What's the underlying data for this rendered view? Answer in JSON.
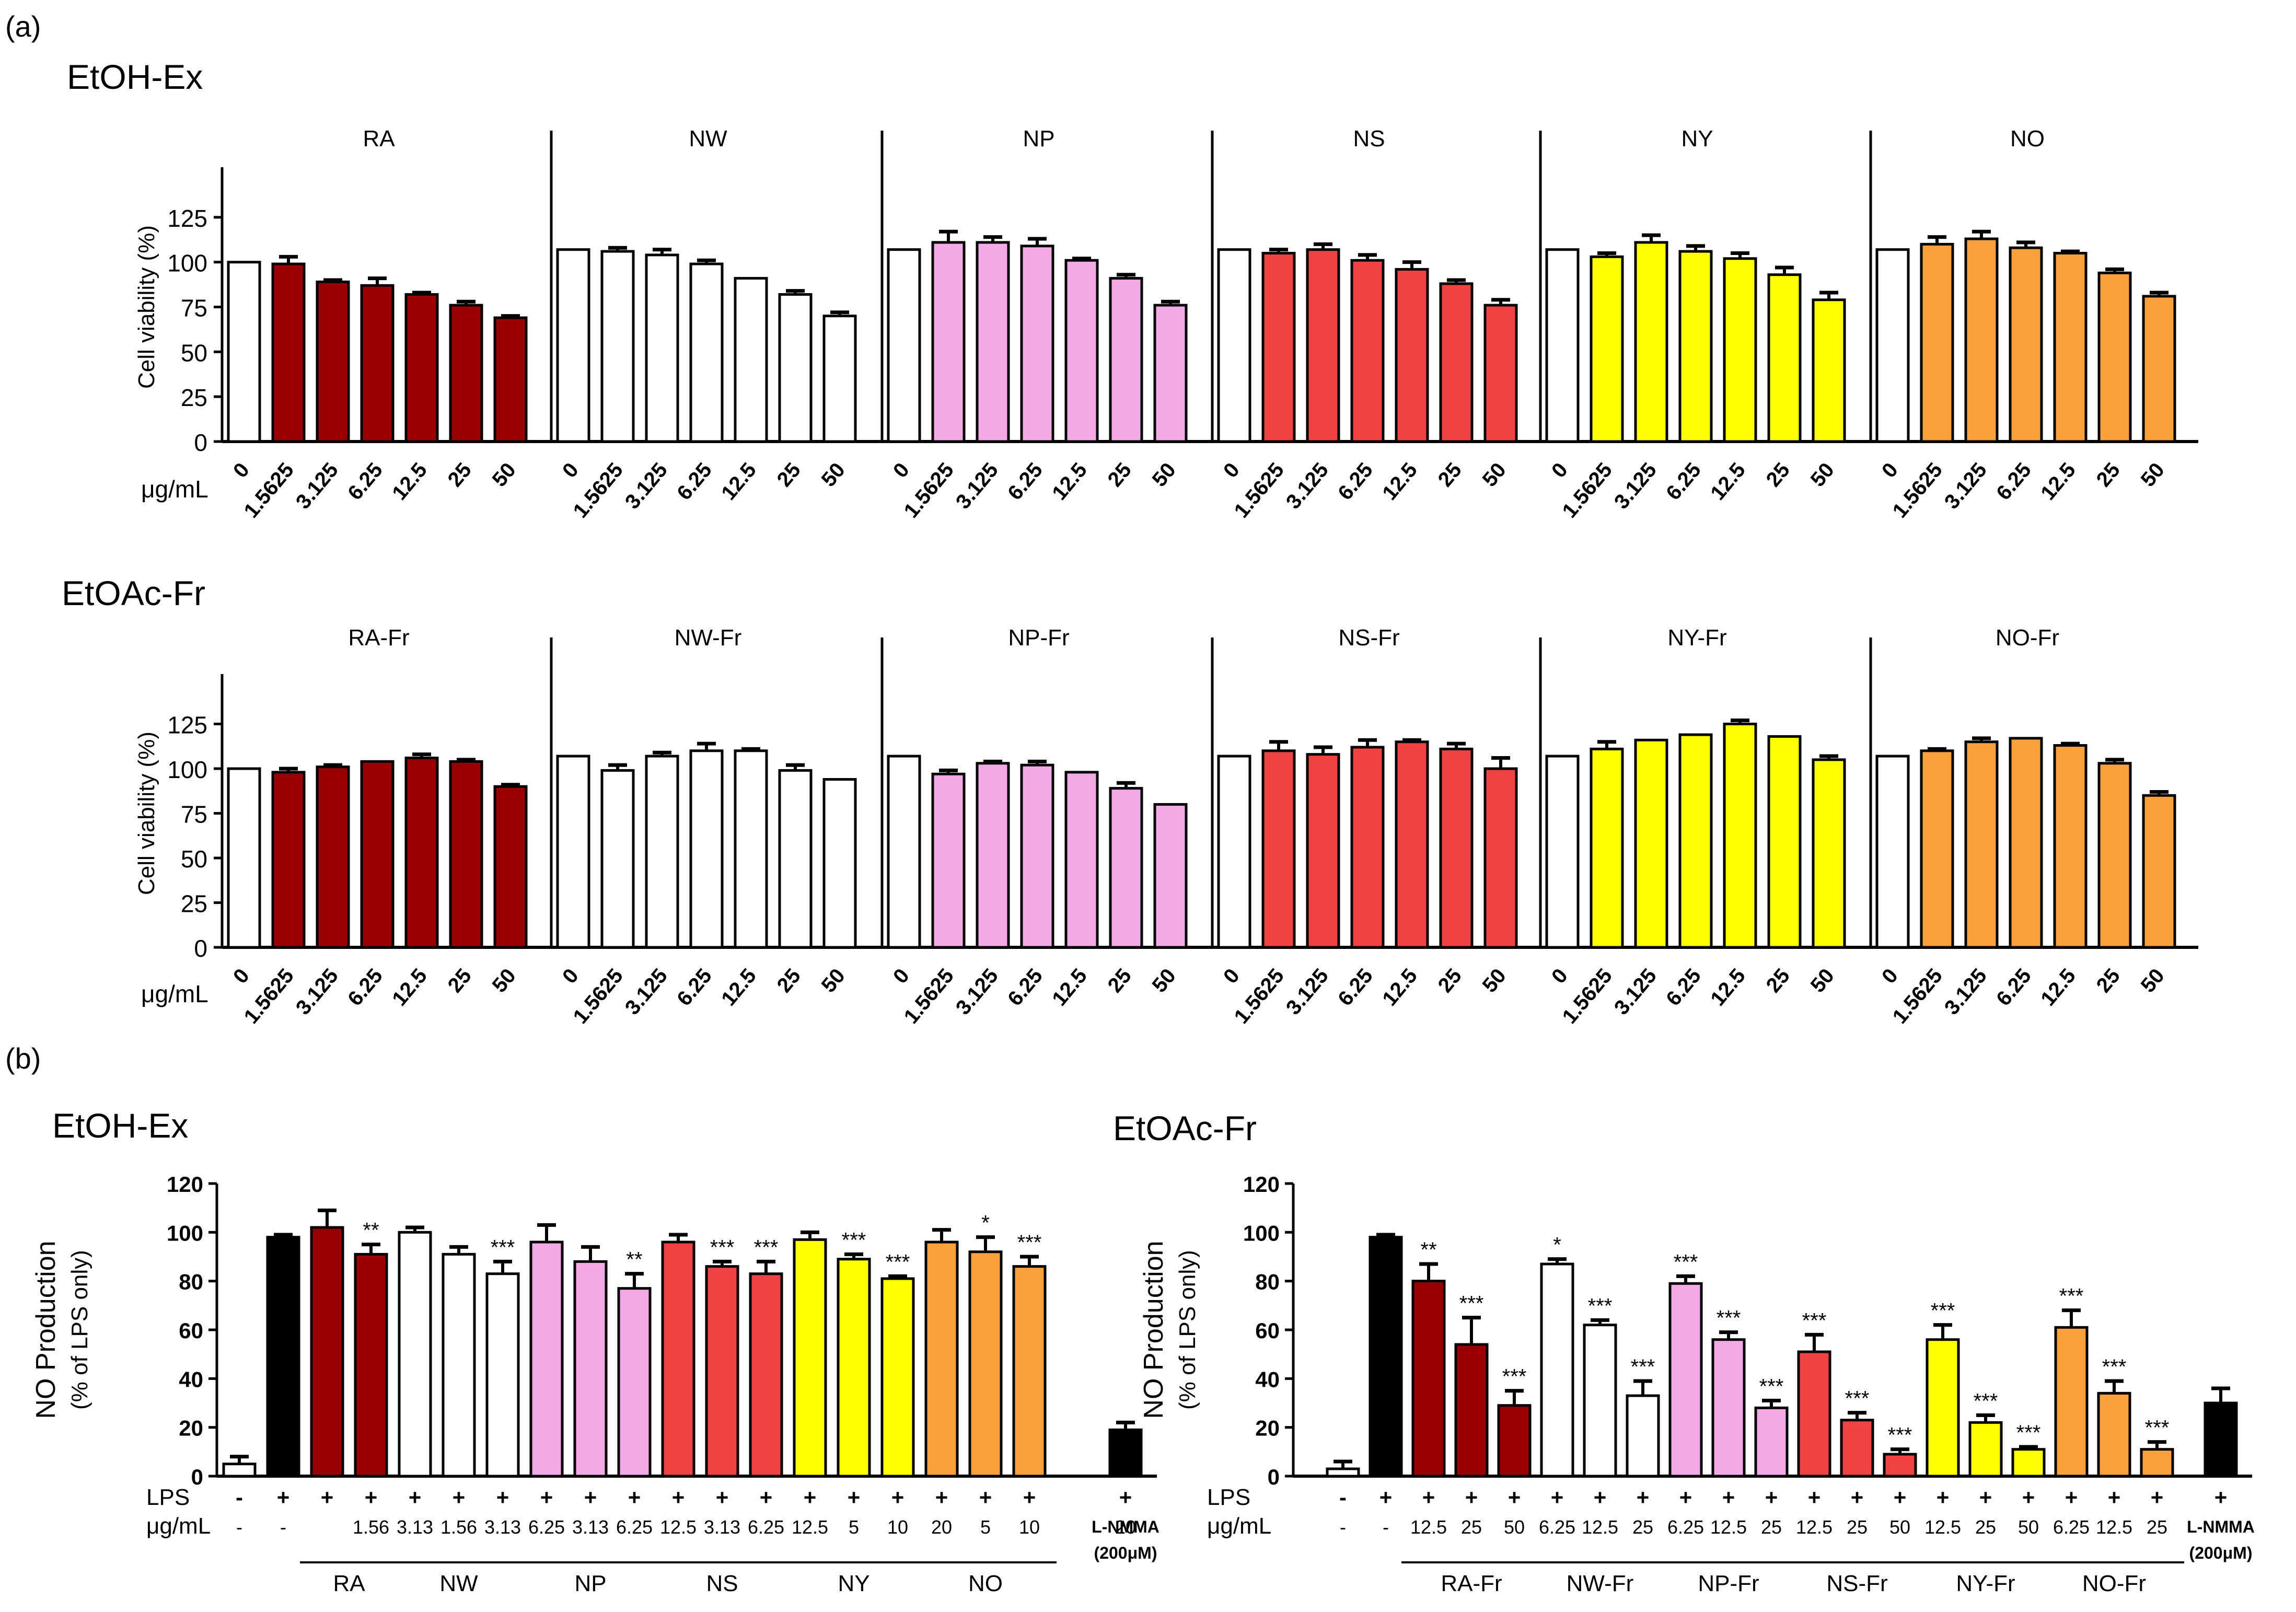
{
  "figure": {
    "panel_a_label": "(a)",
    "panel_b_label": "(b)",
    "row1_title": "EtOH-Ex",
    "row2_title": "EtOAc-Fr",
    "b_left_title": "EtOH-Ex",
    "b_right_title": "EtOAc-Fr"
  },
  "colors": {
    "RA": "#990000",
    "NW": "#ffffff",
    "NP": "#f2a9e6",
    "NS": "#f04242",
    "NY": "#ffff00",
    "NO": "#f9a03c",
    "control": "#ffffff",
    "lps": "#000000"
  },
  "chart_data": [
    {
      "id": "viability_etoh",
      "type": "bar",
      "ylabel": "Cell viability (%)",
      "xunit": "μg/mL",
      "ylim": [
        0,
        150
      ],
      "yticks": [
        "0",
        "25",
        "50",
        "75",
        "100",
        "125"
      ],
      "groups": [
        {
          "name": "RA",
          "color_key": "RA",
          "categories": [
            "0",
            "1.5625",
            "3.125",
            "6.25",
            "12.5",
            "25",
            "50"
          ],
          "values": [
            100,
            99,
            89,
            87,
            82,
            76,
            69
          ],
          "errors": [
            0,
            4,
            1,
            4,
            1,
            2,
            1
          ]
        },
        {
          "name": "NW",
          "color_key": "NW",
          "categories": [
            "0",
            "1.5625",
            "3.125",
            "6.25",
            "12.5",
            "25",
            "50"
          ],
          "values": [
            107,
            106,
            104,
            99,
            91,
            82,
            70
          ],
          "errors": [
            0,
            2,
            3,
            2,
            0,
            2,
            2
          ]
        },
        {
          "name": "NP",
          "color_key": "NP",
          "categories": [
            "0",
            "1.5625",
            "3.125",
            "6.25",
            "12.5",
            "25",
            "50"
          ],
          "values": [
            107,
            111,
            111,
            109,
            101,
            91,
            76
          ],
          "errors": [
            0,
            6,
            3,
            4,
            1,
            2,
            2
          ]
        },
        {
          "name": "NS",
          "color_key": "NS",
          "categories": [
            "0",
            "1.5625",
            "3.125",
            "6.25",
            "12.5",
            "25",
            "50"
          ],
          "values": [
            107,
            105,
            107,
            101,
            96,
            88,
            76
          ],
          "errors": [
            0,
            2,
            3,
            3,
            4,
            2,
            3
          ]
        },
        {
          "name": "NY",
          "color_key": "NY",
          "categories": [
            "0",
            "1.5625",
            "3.125",
            "6.25",
            "12.5",
            "25",
            "50"
          ],
          "values": [
            107,
            103,
            111,
            106,
            102,
            93,
            79
          ],
          "errors": [
            0,
            2,
            4,
            3,
            3,
            4,
            4
          ]
        },
        {
          "name": "NO",
          "color_key": "NO",
          "categories": [
            "0",
            "1.5625",
            "3.125",
            "6.25",
            "12.5",
            "25",
            "50"
          ],
          "values": [
            107,
            110,
            113,
            108,
            105,
            94,
            81
          ],
          "errors": [
            0,
            4,
            4,
            3,
            1,
            2,
            2
          ]
        }
      ]
    },
    {
      "id": "viability_etoac",
      "type": "bar",
      "ylabel": "Cell viability (%)",
      "xunit": "μg/mL",
      "ylim": [
        0,
        150
      ],
      "yticks": [
        "0",
        "25",
        "50",
        "75",
        "100",
        "125"
      ],
      "groups": [
        {
          "name": "RA-Fr",
          "color_key": "RA",
          "categories": [
            "0",
            "1.5625",
            "3.125",
            "6.25",
            "12.5",
            "25",
            "50"
          ],
          "values": [
            100,
            98,
            101,
            104,
            106,
            104,
            90
          ],
          "errors": [
            0,
            2,
            1,
            0,
            2,
            1,
            1
          ]
        },
        {
          "name": "NW-Fr",
          "color_key": "NW",
          "categories": [
            "0",
            "1.5625",
            "3.125",
            "6.25",
            "12.5",
            "25",
            "50"
          ],
          "values": [
            107,
            99,
            107,
            110,
            110,
            99,
            94
          ],
          "errors": [
            0,
            3,
            2,
            4,
            1,
            3,
            0
          ]
        },
        {
          "name": "NP-Fr",
          "color_key": "NP",
          "categories": [
            "0",
            "1.5625",
            "3.125",
            "6.25",
            "12.5",
            "25",
            "50"
          ],
          "values": [
            107,
            97,
            103,
            102,
            98,
            89,
            80
          ],
          "errors": [
            0,
            2,
            1,
            2,
            0,
            3,
            0
          ]
        },
        {
          "name": "NS-Fr",
          "color_key": "NS",
          "categories": [
            "0",
            "1.5625",
            "3.125",
            "6.25",
            "12.5",
            "25",
            "50"
          ],
          "values": [
            107,
            110,
            108,
            112,
            115,
            111,
            100
          ],
          "errors": [
            0,
            5,
            4,
            4,
            1,
            3,
            6
          ]
        },
        {
          "name": "NY-Fr",
          "color_key": "NY",
          "categories": [
            "0",
            "1.5625",
            "3.125",
            "6.25",
            "12.5",
            "25",
            "50"
          ],
          "values": [
            107,
            111,
            116,
            119,
            125,
            118,
            105
          ],
          "errors": [
            0,
            4,
            0,
            0,
            2,
            0,
            2
          ]
        },
        {
          "name": "NO-Fr",
          "color_key": "NO",
          "categories": [
            "0",
            "1.5625",
            "3.125",
            "6.25",
            "12.5",
            "25",
            "50"
          ],
          "values": [
            107,
            110,
            115,
            117,
            113,
            103,
            85
          ],
          "errors": [
            0,
            1,
            2,
            0,
            1,
            2,
            2
          ]
        }
      ]
    },
    {
      "id": "no_production_etoh",
      "type": "bar",
      "ylabel": "NO Production",
      "ylabel2": "(% of LPS only)",
      "ylim": [
        0,
        120
      ],
      "yticks": [
        "0",
        "20",
        "40",
        "60",
        "80",
        "100",
        "120"
      ],
      "row_labels": [
        "LPS",
        "μg/mL"
      ],
      "bars": [
        {
          "lps": "-",
          "dose": "-",
          "value": 5,
          "error": 3,
          "sig": "",
          "color_key": "control"
        },
        {
          "lps": "+",
          "dose": "-",
          "value": 98,
          "error": 1,
          "sig": "",
          "color_key": "lps"
        },
        {
          "lps": "+",
          "dose": "",
          "value": 102,
          "error": 7,
          "sig": "",
          "color_key": "RA"
        },
        {
          "lps": "+",
          "dose": "1.56",
          "value": 91,
          "error": 4,
          "sig": "**",
          "color_key": "RA"
        },
        {
          "lps": "+",
          "dose": "3.13",
          "value": 100,
          "error": 2,
          "sig": "",
          "color_key": "NW"
        },
        {
          "lps": "+",
          "dose": "1.56",
          "value": 91,
          "error": 3,
          "sig": "",
          "color_key": "NW"
        },
        {
          "lps": "+",
          "dose": "3.13",
          "value": 83,
          "error": 5,
          "sig": "***",
          "color_key": "NW"
        },
        {
          "lps": "+",
          "dose": "6.25",
          "value": 96,
          "error": 7,
          "sig": "",
          "color_key": "NP"
        },
        {
          "lps": "+",
          "dose": "3.13",
          "value": 88,
          "error": 6,
          "sig": "",
          "color_key": "NP"
        },
        {
          "lps": "+",
          "dose": "6.25",
          "value": 77,
          "error": 6,
          "sig": "**",
          "color_key": "NP"
        },
        {
          "lps": "+",
          "dose": "12.5",
          "value": 96,
          "error": 3,
          "sig": "",
          "color_key": "NS"
        },
        {
          "lps": "+",
          "dose": "3.13",
          "value": 86,
          "error": 2,
          "sig": "***",
          "color_key": "NS"
        },
        {
          "lps": "+",
          "dose": "6.25",
          "value": 83,
          "error": 5,
          "sig": "***",
          "color_key": "NS"
        },
        {
          "lps": "+",
          "dose": "12.5",
          "value": 97,
          "error": 3,
          "sig": "",
          "color_key": "NY"
        },
        {
          "lps": "+",
          "dose": "5",
          "value": 89,
          "error": 2,
          "sig": "***",
          "color_key": "NY"
        },
        {
          "lps": "+",
          "dose": "10",
          "value": 81,
          "error": 1,
          "sig": "***",
          "color_key": "NY"
        },
        {
          "lps": "+",
          "dose": "20",
          "value": 96,
          "error": 5,
          "sig": "",
          "color_key": "NO"
        },
        {
          "lps": "+",
          "dose": "5",
          "value": 92,
          "error": 6,
          "sig": "*",
          "color_key": "NO"
        },
        {
          "lps": "+",
          "dose": "10",
          "value": 86,
          "error": 4,
          "sig": "***",
          "color_key": "NO"
        },
        {
          "lps": "+",
          "dose": "20",
          "value": 19,
          "error": 3,
          "sig": "",
          "color_key": "lps"
        }
      ],
      "group_labels": [
        "RA",
        "NW",
        "NP",
        "NS",
        "NY",
        "NO"
      ],
      "control_label_1": "L-NMMA",
      "control_label_2": "(200μM)"
    },
    {
      "id": "no_production_etoac",
      "type": "bar",
      "ylabel": "NO Production",
      "ylabel2": "(% of LPS only)",
      "ylim": [
        0,
        120
      ],
      "yticks": [
        "0",
        "20",
        "40",
        "60",
        "80",
        "100",
        "120"
      ],
      "row_labels": [
        "LPS",
        "μg/mL"
      ],
      "bars": [
        {
          "lps": "-",
          "dose": "-",
          "value": 3,
          "error": 3,
          "sig": "",
          "color_key": "control"
        },
        {
          "lps": "+",
          "dose": "-",
          "value": 98,
          "error": 1,
          "sig": "",
          "color_key": "lps"
        },
        {
          "lps": "+",
          "dose": "12.5",
          "value": 80,
          "error": 7,
          "sig": "**",
          "color_key": "RA"
        },
        {
          "lps": "+",
          "dose": "25",
          "value": 54,
          "error": 11,
          "sig": "***",
          "color_key": "RA"
        },
        {
          "lps": "+",
          "dose": "50",
          "value": 29,
          "error": 6,
          "sig": "***",
          "color_key": "RA"
        },
        {
          "lps": "+",
          "dose": "6.25",
          "value": 87,
          "error": 2,
          "sig": "*",
          "color_key": "NW"
        },
        {
          "lps": "+",
          "dose": "12.5",
          "value": 62,
          "error": 2,
          "sig": "***",
          "color_key": "NW"
        },
        {
          "lps": "+",
          "dose": "25",
          "value": 33,
          "error": 6,
          "sig": "***",
          "color_key": "NW"
        },
        {
          "lps": "+",
          "dose": "6.25",
          "value": 79,
          "error": 3,
          "sig": "***",
          "color_key": "NP"
        },
        {
          "lps": "+",
          "dose": "12.5",
          "value": 56,
          "error": 3,
          "sig": "***",
          "color_key": "NP"
        },
        {
          "lps": "+",
          "dose": "25",
          "value": 28,
          "error": 3,
          "sig": "***",
          "color_key": "NP"
        },
        {
          "lps": "+",
          "dose": "12.5",
          "value": 51,
          "error": 7,
          "sig": "***",
          "color_key": "NS"
        },
        {
          "lps": "+",
          "dose": "25",
          "value": 23,
          "error": 3,
          "sig": "***",
          "color_key": "NS"
        },
        {
          "lps": "+",
          "dose": "50",
          "value": 9,
          "error": 2,
          "sig": "***",
          "color_key": "NS"
        },
        {
          "lps": "+",
          "dose": "12.5",
          "value": 56,
          "error": 6,
          "sig": "***",
          "color_key": "NY"
        },
        {
          "lps": "+",
          "dose": "25",
          "value": 22,
          "error": 3,
          "sig": "***",
          "color_key": "NY"
        },
        {
          "lps": "+",
          "dose": "50",
          "value": 11,
          "error": 1,
          "sig": "***",
          "color_key": "NY"
        },
        {
          "lps": "+",
          "dose": "6.25",
          "value": 61,
          "error": 7,
          "sig": "***",
          "color_key": "NO"
        },
        {
          "lps": "+",
          "dose": "12.5",
          "value": 34,
          "error": 5,
          "sig": "***",
          "color_key": "NO"
        },
        {
          "lps": "+",
          "dose": "25",
          "value": 11,
          "error": 3,
          "sig": "***",
          "color_key": "NO"
        },
        {
          "lps": "+",
          "dose": "",
          "value": 30,
          "error": 6,
          "sig": "",
          "color_key": "lps"
        }
      ],
      "group_labels": [
        "RA-Fr",
        "NW-Fr",
        "NP-Fr",
        "NS-Fr",
        "NY-Fr",
        "NO-Fr"
      ],
      "control_label_1": "L-NMMA",
      "control_label_2": "(200μM)"
    }
  ]
}
